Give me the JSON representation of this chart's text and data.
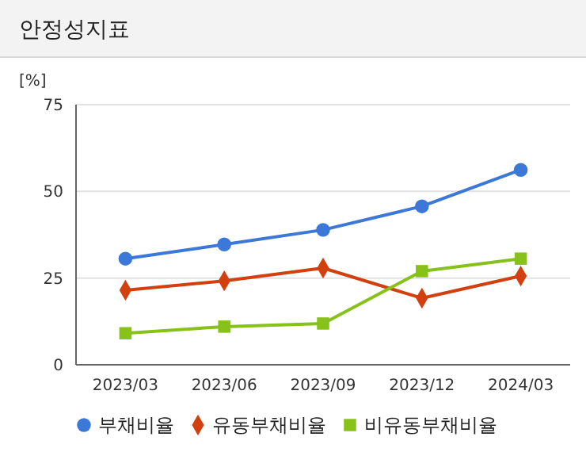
{
  "chart_data": {
    "type": "line",
    "title": "안정성지표",
    "ylabel": "[%]",
    "categories": [
      "2023/03",
      "2023/06",
      "2023/09",
      "2023/12",
      "2024/03"
    ],
    "ylim": [
      0,
      75
    ],
    "yticks": [
      0,
      25,
      50,
      75
    ],
    "grid": "y",
    "legend": "bottom",
    "series": [
      {
        "name": "부채비율",
        "color": "#3b78d8",
        "marker": "circle",
        "values": [
          30.6,
          34.7,
          38.9,
          45.7,
          56.2
        ]
      },
      {
        "name": "유동부채비율",
        "color": "#d2400f",
        "marker": "diamond",
        "values": [
          21.5,
          24.2,
          27.9,
          19.2,
          25.6
        ]
      },
      {
        "name": "비유동부채비율",
        "color": "#86c21a",
        "marker": "square",
        "values": [
          9.1,
          11,
          11.9,
          27,
          30.6
        ]
      }
    ]
  }
}
